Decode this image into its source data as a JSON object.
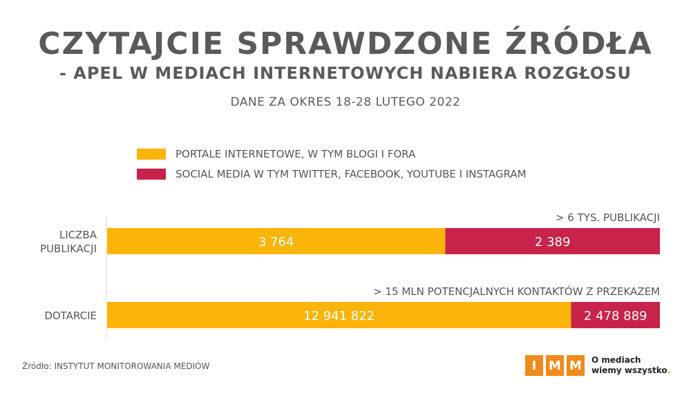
{
  "chart_data": {
    "type": "stacked-bar-horizontal",
    "title": "CZYTAJCIE SPRAWDZONE ŹRÓDŁA",
    "subtitle": "- APEL W MEDIACH INTERNETOWYCH NABIERA ROZGŁOSU",
    "period": "DANE ZA OKRES 18-28 LUTEGO 2022",
    "series": [
      {
        "name": "PORTALE INTERNETOWE, W TYM BLOGI I FORA",
        "color": "#fbb40a"
      },
      {
        "name": "SOCIAL MEDIA W TYM TWITTER, FACEBOOK, YOUTUBE I INSTAGRAM",
        "color": "#c8234a"
      }
    ],
    "rows": [
      {
        "label_lines": [
          "LICZBA",
          "PUBLIKACJI"
        ],
        "annotation": "> 6 TYS. PUBLIKACJI",
        "values": [
          3764,
          2389
        ],
        "value_labels": [
          "3 764",
          "2 389"
        ]
      },
      {
        "label_lines": [
          "DOTARCIE"
        ],
        "annotation": "> 15 MLN POTENCJALNYCH KONTAKTÓW Z PRZEKAZEM",
        "values": [
          12941822,
          2478889
        ],
        "value_labels": [
          "12 941 822",
          "2 478 889"
        ]
      }
    ],
    "scale": "each bar normalized to 100%"
  },
  "footer": {
    "source": "Źródło: INSTYTUT MONITOROWANIA MEDIÓW",
    "logo_letters": [
      "I",
      "M",
      "M"
    ],
    "tagline_line1": "O mediach",
    "tagline_line2": "wiemy wszystko",
    "tagline_dot": "."
  }
}
